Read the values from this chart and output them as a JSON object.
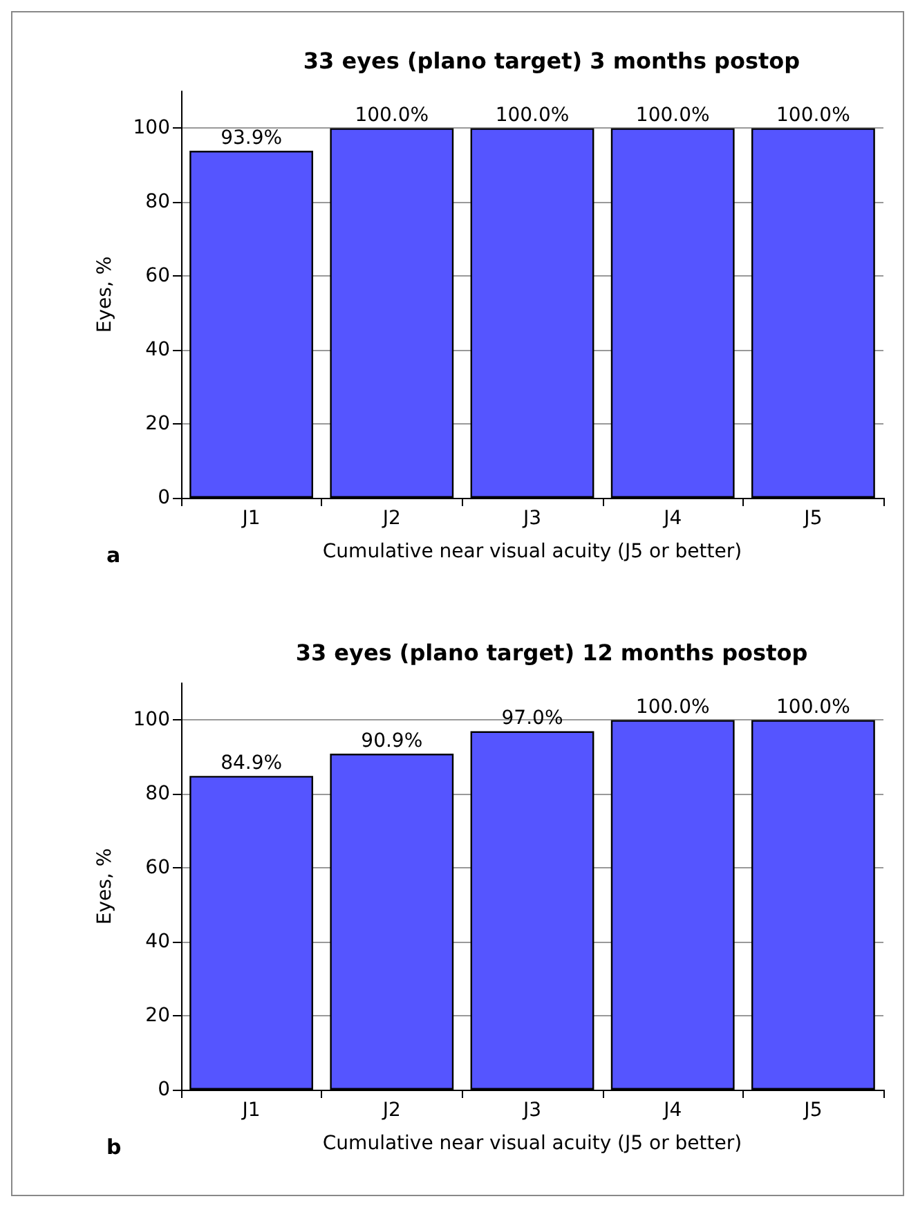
{
  "chart_data": [
    {
      "type": "bar",
      "title": "33 eyes (plano target) 3 months postop",
      "xlabel": "Cumulative near visual acuity (J5 or better)",
      "ylabel": "Eyes, %",
      "categories": [
        "J1",
        "J2",
        "J3",
        "J4",
        "J5"
      ],
      "series": [
        {
          "color": "#5555ff",
          "values": [
            93.9,
            100,
            100,
            100,
            100
          ],
          "value_labels": [
            "93.9%",
            "100.0%",
            "100.0%",
            "100.0%",
            "100.0%"
          ]
        }
      ],
      "ylim": [
        0,
        110
      ],
      "yticks": [
        0,
        20,
        40,
        60,
        80,
        100
      ],
      "grid": "y",
      "annotations": [
        "a"
      ]
    },
    {
      "type": "bar",
      "title": "33 eyes (plano target) 12 months postop",
      "xlabel": "Cumulative near visual acuity (J5 or better)",
      "ylabel": "Eyes, %",
      "categories": [
        "J1",
        "J2",
        "J3",
        "J4",
        "J5"
      ],
      "series": [
        {
          "color": "#5555ff",
          "values": [
            84.9,
            90.9,
            97.0,
            100,
            100
          ],
          "value_labels": [
            "84.9%",
            "90.9%",
            "97.0%",
            "100.0%",
            "100.0%"
          ]
        }
      ],
      "ylim": [
        0,
        110
      ],
      "yticks": [
        0,
        20,
        40,
        60,
        80,
        100
      ],
      "grid": "y",
      "annotations": [
        "b"
      ]
    }
  ]
}
